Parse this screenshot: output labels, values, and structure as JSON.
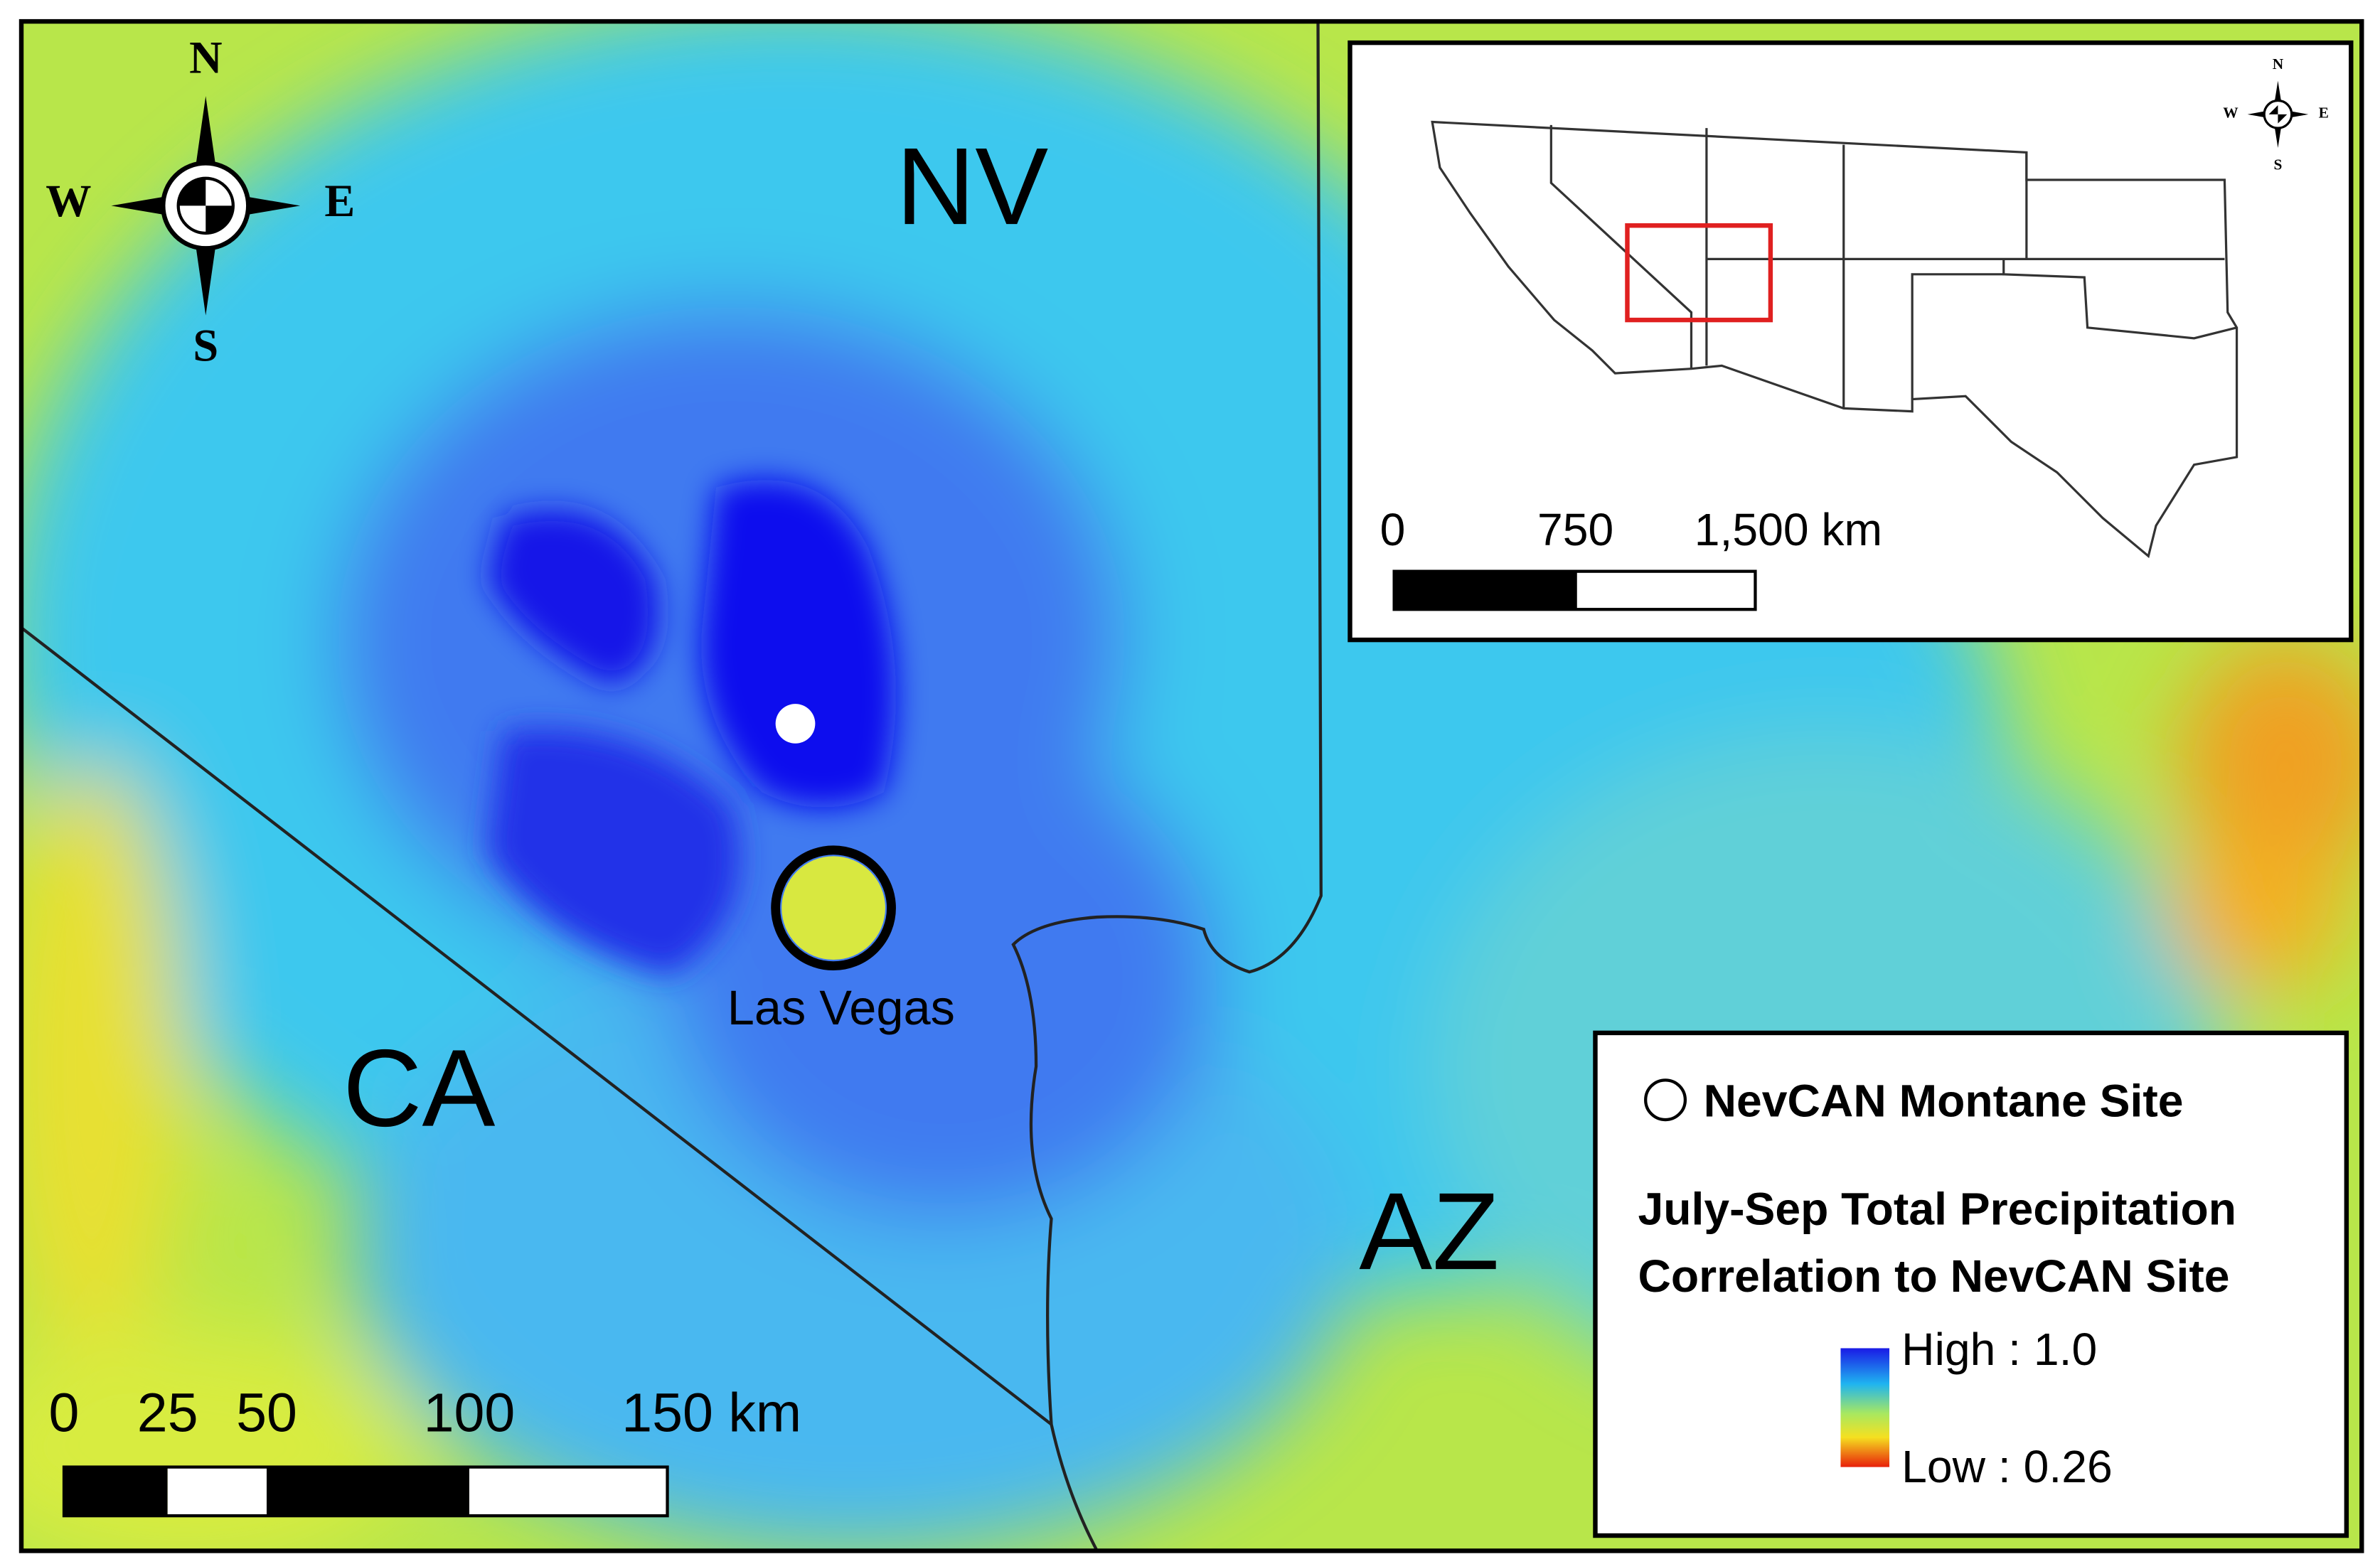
{
  "map": {
    "state_labels": [
      "NV",
      "CA",
      "AZ"
    ],
    "city_label": "Las Vegas",
    "compass": {
      "n": "N",
      "s": "S",
      "w": "W",
      "e": "E"
    },
    "scale_bar": [
      "0",
      "25",
      "50",
      "100",
      "150 km"
    ]
  },
  "inset": {
    "compass": {
      "n": "N",
      "s": "S",
      "w": "W",
      "e": "E"
    },
    "scale_bar": [
      "0",
      "750",
      "1,500 km"
    ]
  },
  "legend": {
    "site": "NevCAN Montane Site",
    "title": [
      "July-Sep Total Precipitation",
      "Correlation to NevCAN Site"
    ],
    "high": "High : 1.0",
    "low": "Low : 0.26"
  }
}
